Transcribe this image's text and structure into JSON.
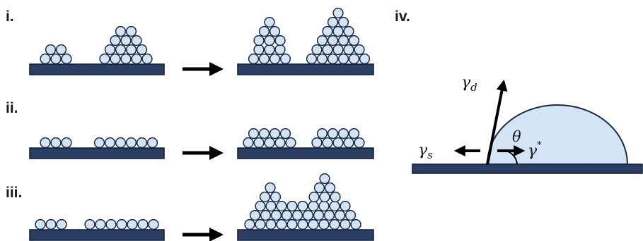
{
  "panels": {
    "i": {
      "label": "i."
    },
    "ii": {
      "label": "ii."
    },
    "iii": {
      "label": "iii."
    },
    "iv": {
      "label": "iv."
    }
  },
  "wetting": {
    "gamma_d_symbol": "γ",
    "gamma_d_subscript": "d",
    "gamma_s_symbol": "γ",
    "gamma_s_subscript": "s",
    "gamma_star_symbol": "γ",
    "gamma_star_superscript": "*",
    "theta_symbol": "θ"
  },
  "colors": {
    "substrate": "#2b3e63",
    "substrate_stroke": "#0f1a30",
    "particle_fill": "#d2e4f5",
    "particle_stroke": "#1d2a44",
    "droplet_fill": "#d2e4f5",
    "arrow": "#000000"
  }
}
